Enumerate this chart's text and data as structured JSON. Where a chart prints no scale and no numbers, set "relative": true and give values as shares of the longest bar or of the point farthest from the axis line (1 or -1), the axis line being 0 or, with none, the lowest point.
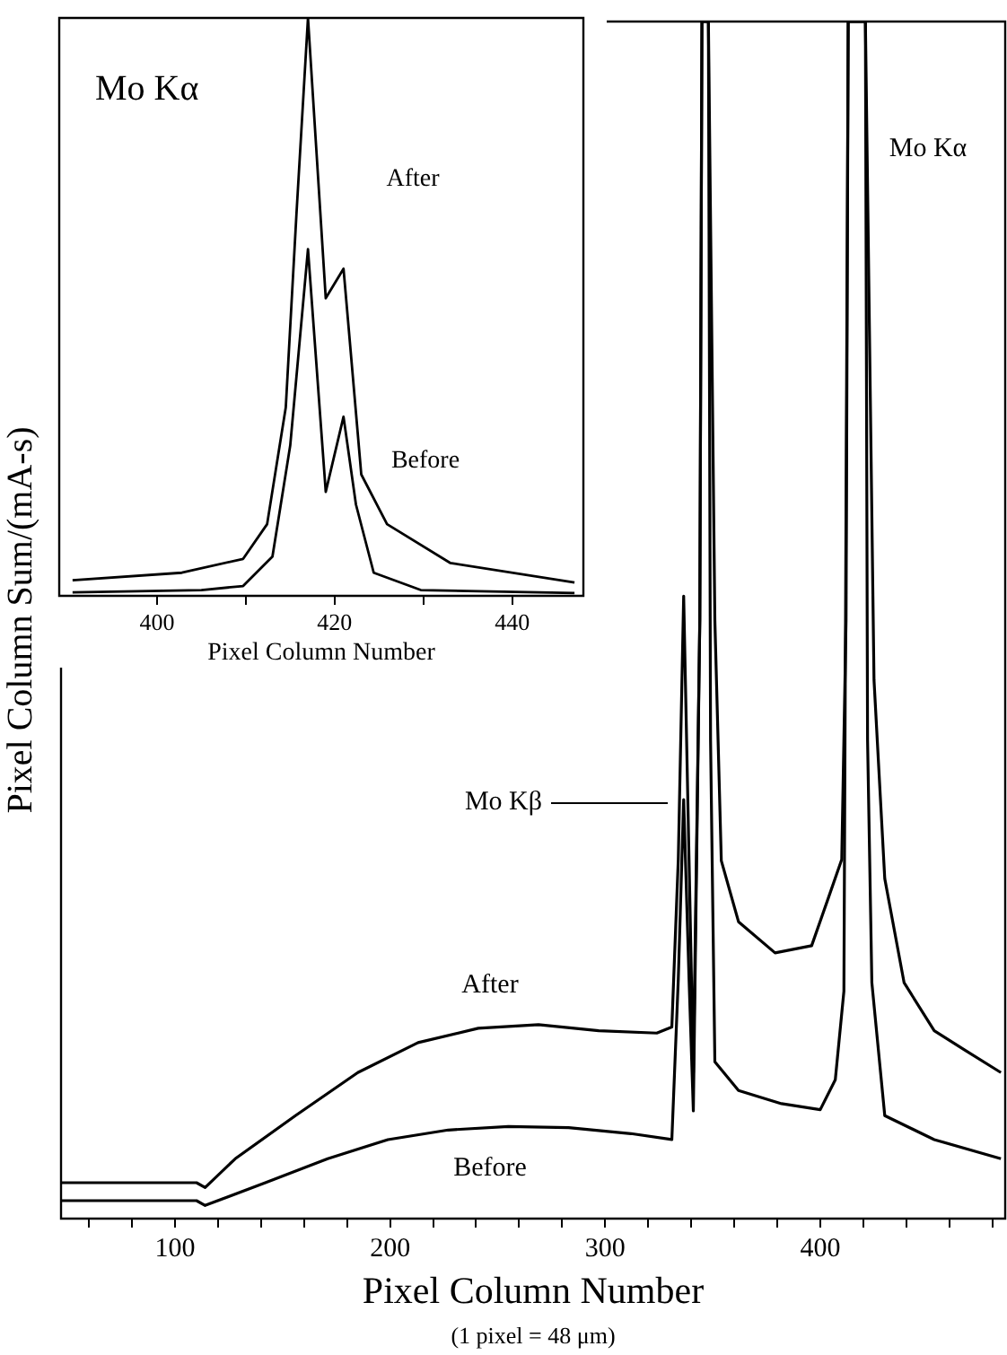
{
  "chart_data": [
    {
      "type": "line",
      "relative": true,
      "xlabel": "Pixel Column Number",
      "ylabel": "Pixel Column Sum/(mA-s)",
      "xlim": [
        47,
        486
      ],
      "xticks": [
        {
          "value": 60,
          "label": null
        },
        {
          "value": 80,
          "label": null
        },
        100,
        {
          "value": 120,
          "label": null
        },
        {
          "value": 140,
          "label": null
        },
        {
          "value": 160,
          "label": null
        },
        {
          "value": 180,
          "label": null
        },
        200,
        {
          "value": 220,
          "label": null
        },
        {
          "value": 240,
          "label": null
        },
        {
          "value": 260,
          "label": null
        },
        {
          "value": 280,
          "label": null
        },
        300,
        {
          "value": 320,
          "label": null
        },
        {
          "value": 340,
          "label": null
        },
        {
          "value": 360,
          "label": null
        },
        {
          "value": 380,
          "label": null
        },
        400,
        {
          "value": 420,
          "label": null
        },
        {
          "value": 440,
          "label": null
        },
        {
          "value": 460,
          "label": null
        },
        {
          "value": 480,
          "label": null
        }
      ],
      "grid": false,
      "marker": "none",
      "line_style": "solid",
      "legend": false,
      "series": [
        {
          "color": "#000000",
          "x": [
            47,
            80,
            110,
            114,
            128,
            156,
            185,
            213,
            241,
            269,
            297,
            324,
            331,
            334,
            336.5,
            339,
            341,
            344,
            345,
            348,
            351,
            354,
            362,
            379,
            396,
            404,
            410,
            412,
            413,
            417,
            421,
            425,
            430,
            439,
            453,
            467,
            484
          ],
          "values": [
            0.03,
            0.03,
            0.03,
            0.026,
            0.05,
            0.086,
            0.122,
            0.147,
            0.159,
            0.162,
            0.157,
            0.155,
            0.16,
            0.3,
            0.52,
            0.3,
            0.122,
            0.5,
            1,
            1,
            0.5,
            0.299,
            0.248,
            0.222,
            0.228,
            0.269,
            0.3,
            0.5,
            1,
            1,
            1,
            0.45,
            0.284,
            0.197,
            0.157,
            0.141,
            0.122
          ]
        },
        {
          "color": "#000000",
          "x": [
            47,
            80,
            110,
            114,
            142,
            171,
            199,
            227,
            255,
            283,
            312,
            331,
            334,
            336.5,
            339,
            341,
            344,
            345,
            348,
            349,
            351,
            362,
            382,
            400,
            407,
            411,
            413,
            417,
            421,
            422,
            424,
            430,
            453,
            484
          ],
          "values": [
            0.015,
            0.015,
            0.015,
            0.011,
            0.03,
            0.05,
            0.066,
            0.074,
            0.077,
            0.076,
            0.071,
            0.066,
            0.2,
            0.35,
            0.2,
            0.09,
            0.5,
            1,
            1,
            0.4,
            0.131,
            0.107,
            0.096,
            0.091,
            0.116,
            0.19,
            1,
            1,
            1,
            0.4,
            0.197,
            0.086,
            0.066,
            0.05
          ]
        }
      ],
      "annotations": [
        "After",
        "Before",
        "Mo Kβ",
        "Mo Kα",
        "(1 pixel = 48 μm)"
      ]
    },
    {
      "type": "line",
      "relative": true,
      "title": "Mo Kα",
      "xlabel": "Pixel Column Number",
      "xlim": [
        389,
        448
      ],
      "xticks": [
        400,
        {
          "value": 410,
          "label": null
        },
        420,
        {
          "value": 430,
          "label": null
        },
        440
      ],
      "grid": false,
      "marker": "none",
      "line_style": "solid",
      "legend": false,
      "series": [
        {
          "color": "#000000",
          "x": [
            390.5,
            402.8,
            409.7,
            412.4,
            414.5,
            415.7,
            417,
            419,
            421,
            421.6,
            423,
            425.9,
            433,
            447
          ],
          "values": [
            0.027,
            0.04,
            0.064,
            0.124,
            0.326,
            0.66,
            1,
            0.515,
            0.566,
            0.46,
            0.21,
            0.124,
            0.057,
            0.023
          ]
        },
        {
          "color": "#000000",
          "x": [
            390.5,
            405,
            409.7,
            413,
            415,
            417,
            419,
            421,
            422.4,
            424.4,
            429.7,
            447
          ],
          "values": [
            0.006,
            0.01,
            0.017,
            0.068,
            0.26,
            0.6,
            0.18,
            0.31,
            0.158,
            0.04,
            0.01,
            0.005
          ]
        }
      ],
      "annotations": [
        "After",
        "Before"
      ]
    }
  ]
}
